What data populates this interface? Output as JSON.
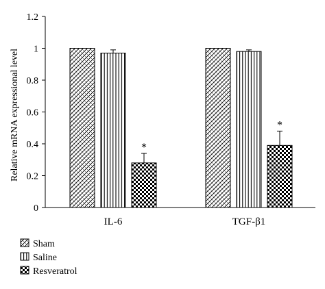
{
  "chart_data": {
    "type": "bar",
    "categories": [
      "IL-6",
      "TGF-β1"
    ],
    "series": [
      {
        "name": "Sham",
        "values": [
          1.0,
          1.0
        ],
        "errors": [
          0.0,
          0.0
        ],
        "colors": {
          "fill": "#ffffff",
          "stroke": "#000000"
        }
      },
      {
        "name": "Saline",
        "values": [
          0.97,
          0.98
        ],
        "errors": [
          0.02,
          0.01
        ],
        "colors": {
          "fill": "#ffffff",
          "stroke": "#000000"
        }
      },
      {
        "name": "Resveratrol",
        "values": [
          0.28,
          0.39
        ],
        "errors": [
          0.06,
          0.09
        ],
        "colors": {
          "fill": "#ffffff",
          "stroke": "#000000"
        }
      }
    ],
    "significance": [
      {
        "series": "Resveratrol",
        "category": "IL-6",
        "label": "*"
      },
      {
        "series": "Resveratrol",
        "category": "TGF-β1",
        "label": "*"
      }
    ],
    "ylabel": "Relative mRNA expressional level",
    "xlabel": "",
    "ylim": [
      0,
      1.2
    ],
    "yticks": [
      "0",
      "0.2",
      "0.4",
      "0.6",
      "0.8",
      "1",
      "1.2"
    ],
    "legend_position": "bottom-left",
    "grid": false
  }
}
